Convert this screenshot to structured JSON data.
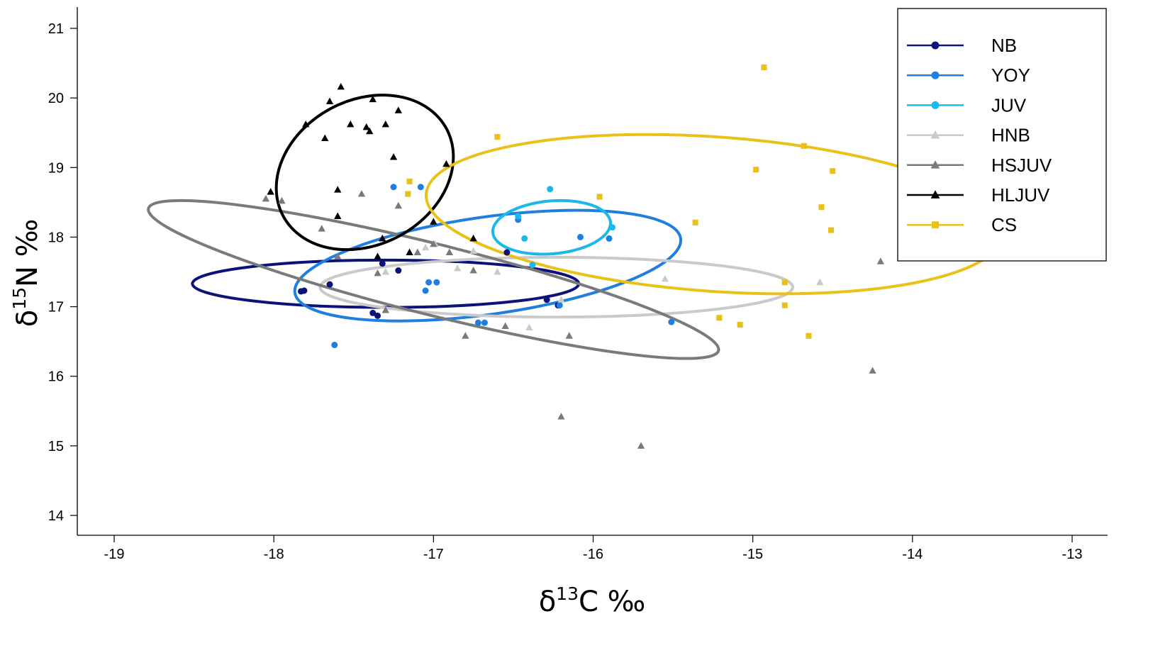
{
  "chart_data": {
    "type": "scatter",
    "title": "",
    "xlabel": {
      "prefix": "δ",
      "sup": "13",
      "suffix": "C ‰"
    },
    "ylabel": {
      "prefix": "δ",
      "sup": "15",
      "suffix": "N ‰"
    },
    "xlim": [
      -19.25,
      -12.75
    ],
    "ylim": [
      13.7,
      21.3
    ],
    "xticks": [
      -19,
      -18,
      -17,
      -16,
      -15,
      -14,
      -13
    ],
    "yticks": [
      14,
      15,
      16,
      17,
      18,
      19,
      20,
      21
    ],
    "xtick_labels": [
      "-19",
      "-18",
      "-17",
      "-16",
      "-15",
      "-14",
      "-13"
    ],
    "ytick_labels": [
      "14",
      "15",
      "16",
      "17",
      "18",
      "19",
      "20",
      "21"
    ],
    "grid": false,
    "legend_position": "top-right",
    "series": [
      {
        "name": "NB",
        "color": "#0c127a",
        "marker": "circle",
        "ellipse": {
          "cx": -17.3,
          "cy": 17.33,
          "rx": 1.21,
          "ry": 0.34,
          "angle": 0
        },
        "points": [
          [
            -17.83,
            17.22
          ],
          [
            -17.81,
            17.23
          ],
          [
            -17.65,
            17.32
          ],
          [
            -17.38,
            16.91
          ],
          [
            -17.35,
            16.87
          ],
          [
            -16.54,
            17.78
          ],
          [
            -16.22,
            17.02
          ],
          [
            -16.29,
            17.1
          ],
          [
            -17.32,
            17.62
          ],
          [
            -17.22,
            17.52
          ]
        ]
      },
      {
        "name": "YOY",
        "color": "#1e7fe0",
        "marker": "circle",
        "ellipse": {
          "cx": -16.66,
          "cy": 17.59,
          "rx": 1.22,
          "ry": 0.7,
          "angle": -8
        },
        "points": [
          [
            -17.62,
            16.45
          ],
          [
            -17.25,
            18.72
          ],
          [
            -17.08,
            18.72
          ],
          [
            -17.05,
            17.23
          ],
          [
            -17.03,
            17.35
          ],
          [
            -16.98,
            17.35
          ],
          [
            -16.72,
            16.77
          ],
          [
            -16.68,
            16.77
          ],
          [
            -16.47,
            18.25
          ],
          [
            -16.08,
            18.0
          ],
          [
            -15.9,
            17.98
          ],
          [
            -15.51,
            16.78
          ],
          [
            -16.21,
            17.02
          ]
        ]
      },
      {
        "name": "JUV",
        "color": "#1ab8eb",
        "marker": "circle",
        "ellipse": {
          "cx": -16.26,
          "cy": 18.14,
          "rx": 0.37,
          "ry": 0.38,
          "angle": -5
        },
        "points": [
          [
            -16.27,
            18.69
          ],
          [
            -16.43,
            17.98
          ],
          [
            -15.88,
            18.14
          ],
          [
            -16.38,
            17.6
          ],
          [
            -16.47,
            18.3
          ]
        ]
      },
      {
        "name": "HNB",
        "color": "#cacaca",
        "marker": "triangle",
        "ellipse": {
          "cx": -16.23,
          "cy": 17.28,
          "rx": 1.48,
          "ry": 0.43,
          "angle": 0
        },
        "points": [
          [
            -16.99,
            17.9
          ],
          [
            -16.75,
            17.8
          ],
          [
            -16.6,
            17.5
          ],
          [
            -16.4,
            16.7
          ],
          [
            -16.2,
            17.1
          ],
          [
            -15.55,
            17.4
          ],
          [
            -14.58,
            17.35
          ],
          [
            -17.3,
            17.5
          ],
          [
            -17.05,
            17.85
          ],
          [
            -16.85,
            17.55
          ]
        ]
      },
      {
        "name": "HSJUV",
        "color": "#7a7a7a",
        "marker": "triangle",
        "ellipse": {
          "cx": -17.0,
          "cy": 17.39,
          "rx": 1.84,
          "ry": 0.51,
          "angle": 14
        },
        "points": [
          [
            -18.05,
            18.55
          ],
          [
            -17.95,
            18.52
          ],
          [
            -17.7,
            18.12
          ],
          [
            -17.6,
            17.72
          ],
          [
            -17.45,
            18.62
          ],
          [
            -17.35,
            17.48
          ],
          [
            -17.3,
            16.95
          ],
          [
            -17.22,
            18.45
          ],
          [
            -16.9,
            17.78
          ],
          [
            -16.8,
            16.58
          ],
          [
            -16.75,
            17.52
          ],
          [
            -16.55,
            16.72
          ],
          [
            -16.2,
            15.42
          ],
          [
            -16.15,
            16.58
          ],
          [
            -15.7,
            15.0
          ],
          [
            -14.25,
            16.08
          ],
          [
            -14.2,
            17.65
          ],
          [
            -17.1,
            17.78
          ],
          [
            -17.0,
            17.9
          ]
        ]
      },
      {
        "name": "HLJUV",
        "color": "#000000",
        "marker": "triangle",
        "ellipse": {
          "cx": -17.43,
          "cy": 18.93,
          "rx": 0.58,
          "ry": 1.04,
          "angle": -28
        },
        "points": [
          [
            -18.02,
            18.65
          ],
          [
            -17.8,
            19.62
          ],
          [
            -17.68,
            19.42
          ],
          [
            -17.65,
            19.95
          ],
          [
            -17.58,
            20.16
          ],
          [
            -17.52,
            19.62
          ],
          [
            -17.42,
            19.58
          ],
          [
            -17.4,
            19.52
          ],
          [
            -17.38,
            19.98
          ],
          [
            -17.3,
            19.62
          ],
          [
            -17.25,
            19.15
          ],
          [
            -17.22,
            19.82
          ],
          [
            -17.6,
            18.68
          ],
          [
            -17.6,
            18.3
          ],
          [
            -17.35,
            17.72
          ],
          [
            -17.32,
            17.98
          ],
          [
            -17.15,
            17.78
          ],
          [
            -17.0,
            18.22
          ],
          [
            -16.92,
            19.05
          ],
          [
            -16.75,
            17.98
          ]
        ]
      },
      {
        "name": "CS",
        "color": "#eac118",
        "marker": "square",
        "ellipse": {
          "cx": -15.24,
          "cy": 18.33,
          "rx": 1.81,
          "ry": 1.11,
          "angle": 4
        },
        "points": [
          [
            -17.15,
            18.8
          ],
          [
            -17.16,
            18.62
          ],
          [
            -16.6,
            19.44
          ],
          [
            -15.96,
            18.58
          ],
          [
            -15.36,
            18.21
          ],
          [
            -15.21,
            16.84
          ],
          [
            -15.08,
            16.74
          ],
          [
            -14.98,
            18.97
          ],
          [
            -14.93,
            20.44
          ],
          [
            -14.8,
            17.35
          ],
          [
            -14.8,
            17.02
          ],
          [
            -14.68,
            19.31
          ],
          [
            -14.65,
            16.58
          ],
          [
            -14.57,
            18.43
          ],
          [
            -14.51,
            18.1
          ],
          [
            -14.5,
            18.95
          ]
        ]
      }
    ]
  }
}
